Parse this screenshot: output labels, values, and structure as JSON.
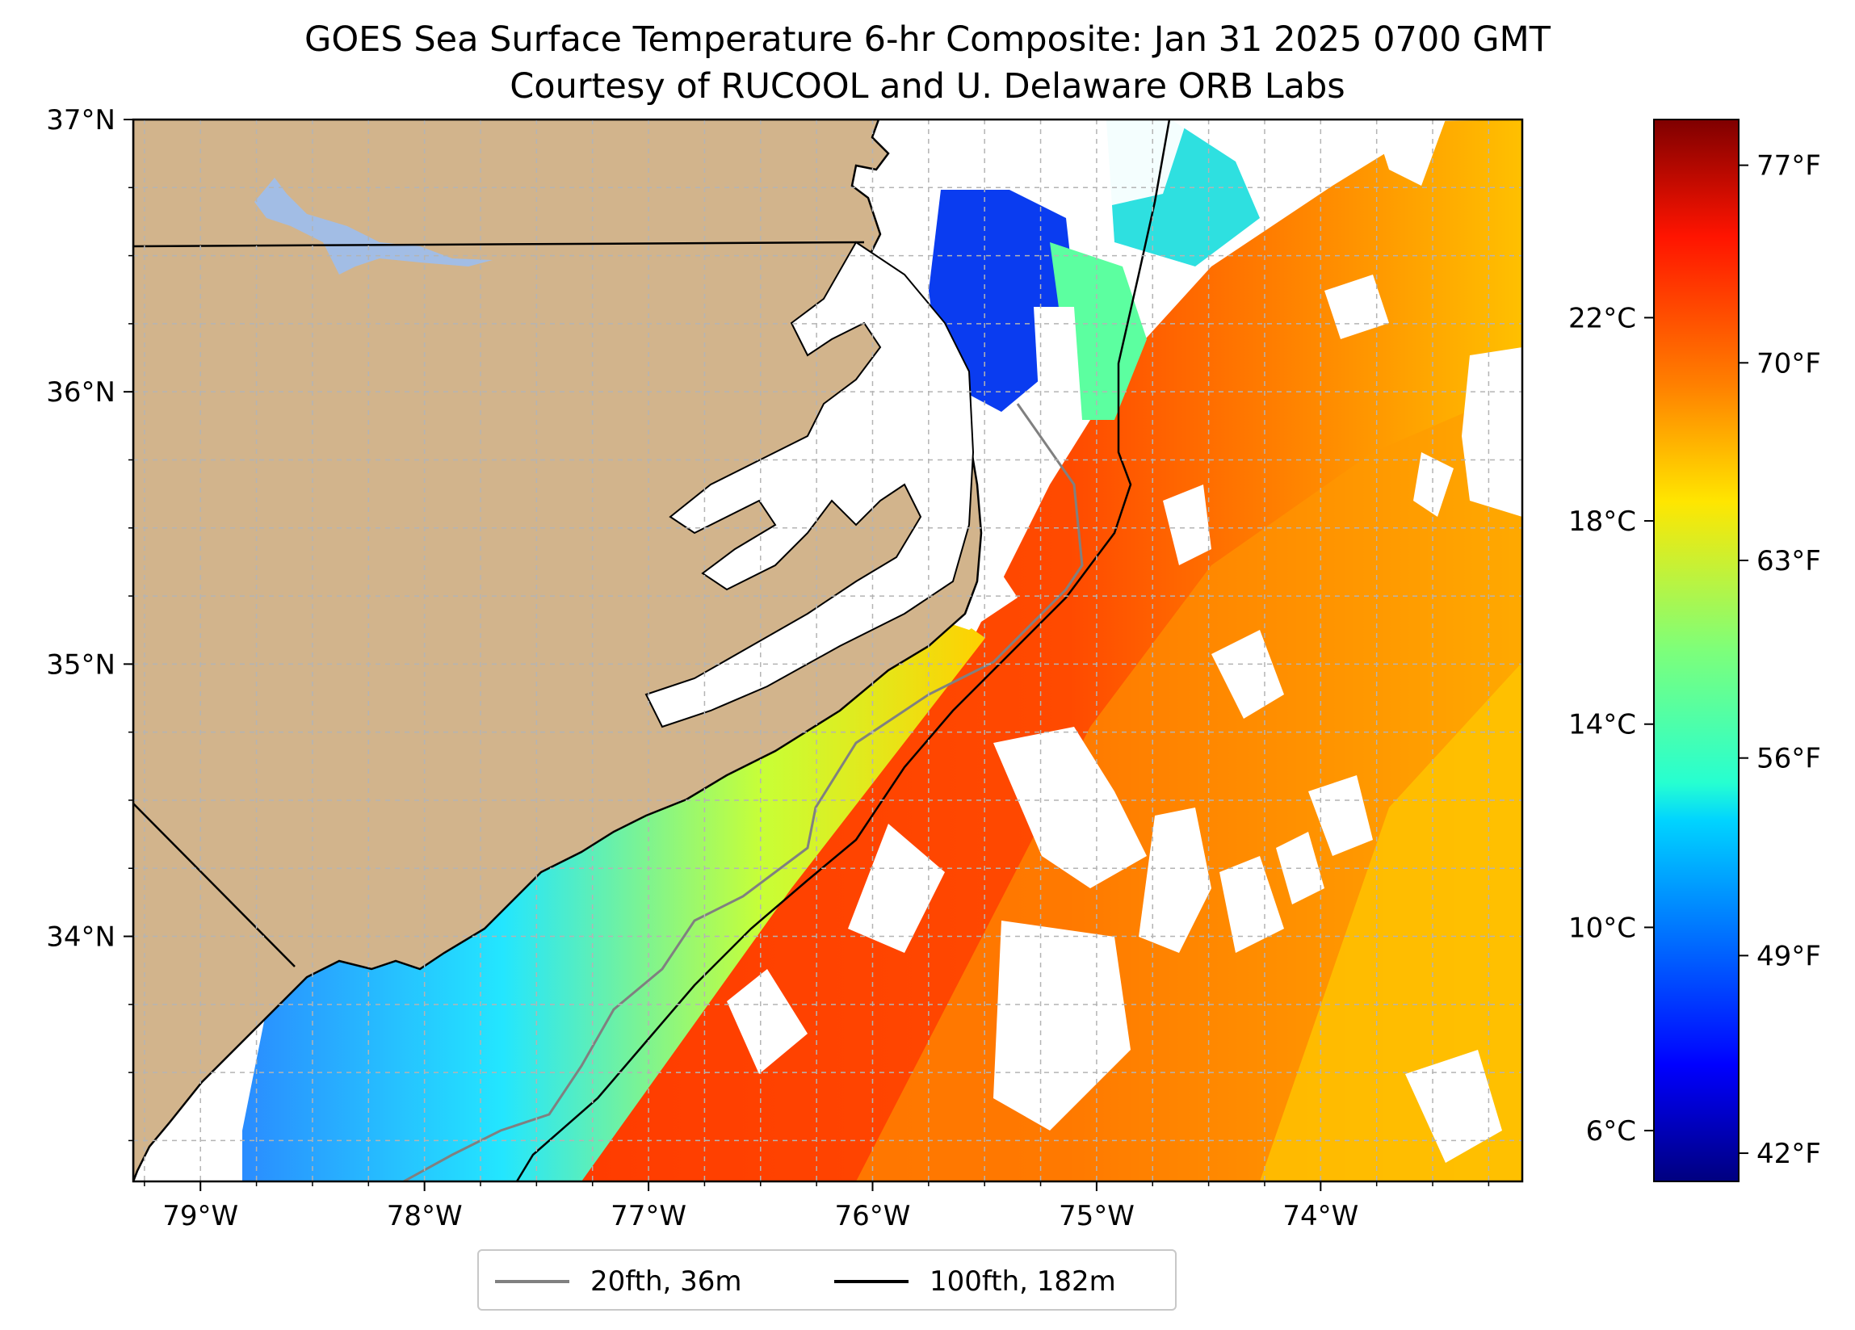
{
  "title_line1": "GOES Sea Surface Temperature 6-hr Composite: Jan 31 2025 0700 GMT",
  "title_line2": "Courtesy of RUCOOL and U. Delaware ORB Labs",
  "colors": {
    "land": "#d2b48c",
    "lake": "#a2bde5",
    "coastline": "#000000",
    "isobath_20fth": "#808080",
    "isobath_100fth": "#000000",
    "gridlines": "#b4b4b4",
    "colormap": "jet"
  },
  "icons": {
    "legend_20fth": "gray-line-swatch",
    "legend_100fth": "black-line-swatch"
  },
  "map": {
    "projection": "PlateCarree",
    "lon_range": [
      -79.3,
      -73.1
    ],
    "lat_range": [
      33.1,
      37.0
    ],
    "lon_ticks": [
      "79°W",
      "78°W",
      "77°W",
      "76°W",
      "75°W",
      "74°W"
    ],
    "lat_ticks": [
      "37°N",
      "36°N",
      "35°N",
      "34°N"
    ],
    "grid": true,
    "grid_style": "dashed, every 0.25°",
    "region": "North Carolina coast (Outer Banks) and adjacent Atlantic"
  },
  "colorbar": {
    "min_c": 5.0,
    "max_c": 25.9,
    "celsius_ticks": [
      "6°C",
      "10°C",
      "14°C",
      "18°C",
      "22°C"
    ],
    "fahrenheit_ticks": [
      "42°F",
      "49°F",
      "56°F",
      "63°F",
      "70°F",
      "77°F"
    ]
  },
  "legend": {
    "items": [
      {
        "label": "20fth, 36m",
        "color": "#808080"
      },
      {
        "label": "100fth, 182m",
        "color": "#000000"
      }
    ],
    "placement": "bottom-center"
  }
}
